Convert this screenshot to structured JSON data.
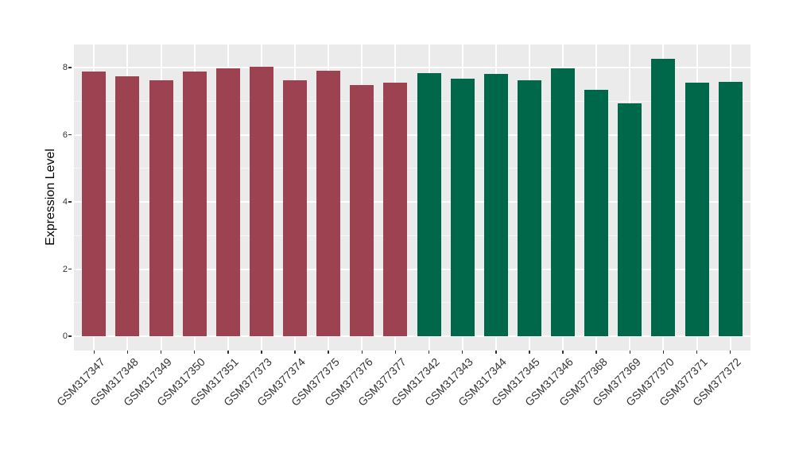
{
  "chart_data": {
    "type": "bar",
    "title": "",
    "xlabel": "",
    "ylabel": "Expression Level",
    "categories": [
      "GSM317347",
      "GSM317348",
      "GSM317349",
      "GSM317350",
      "GSM317351",
      "GSM377373",
      "GSM377374",
      "GSM377375",
      "GSM377376",
      "GSM377377",
      "GSM317342",
      "GSM317343",
      "GSM317344",
      "GSM317345",
      "GSM317346",
      "GSM377368",
      "GSM377369",
      "GSM377370",
      "GSM377371",
      "GSM377372"
    ],
    "values": [
      7.89,
      7.75,
      7.61,
      7.87,
      7.98,
      8.03,
      7.63,
      7.91,
      7.47,
      7.54,
      7.83,
      7.67,
      7.81,
      7.62,
      7.97,
      7.33,
      6.94,
      8.26,
      7.55,
      7.57
    ],
    "bar_colors": [
      "#9D4251",
      "#9D4251",
      "#9D4251",
      "#9D4251",
      "#9D4251",
      "#9D4251",
      "#9D4251",
      "#9D4251",
      "#9D4251",
      "#9D4251",
      "#00684A",
      "#00684A",
      "#00684A",
      "#00684A",
      "#00684A",
      "#00684A",
      "#00684A",
      "#00684A",
      "#00684A",
      "#00684A"
    ],
    "group_colors": {
      "left_group": "#9D4251",
      "right_group": "#00684A"
    },
    "yticks": [
      "0",
      "2",
      "4",
      "6",
      "8"
    ],
    "ytick_values": [
      0,
      2,
      4,
      6,
      8
    ],
    "minor_ytick_values": [
      1,
      3,
      5,
      7
    ],
    "ylim": [
      -0.43,
      8.69
    ],
    "grid": "on",
    "legend_position": "none",
    "panel_bg": "#EBEBEB",
    "grid_major_color": "#FFFFFF",
    "tick_color": "#333333"
  }
}
